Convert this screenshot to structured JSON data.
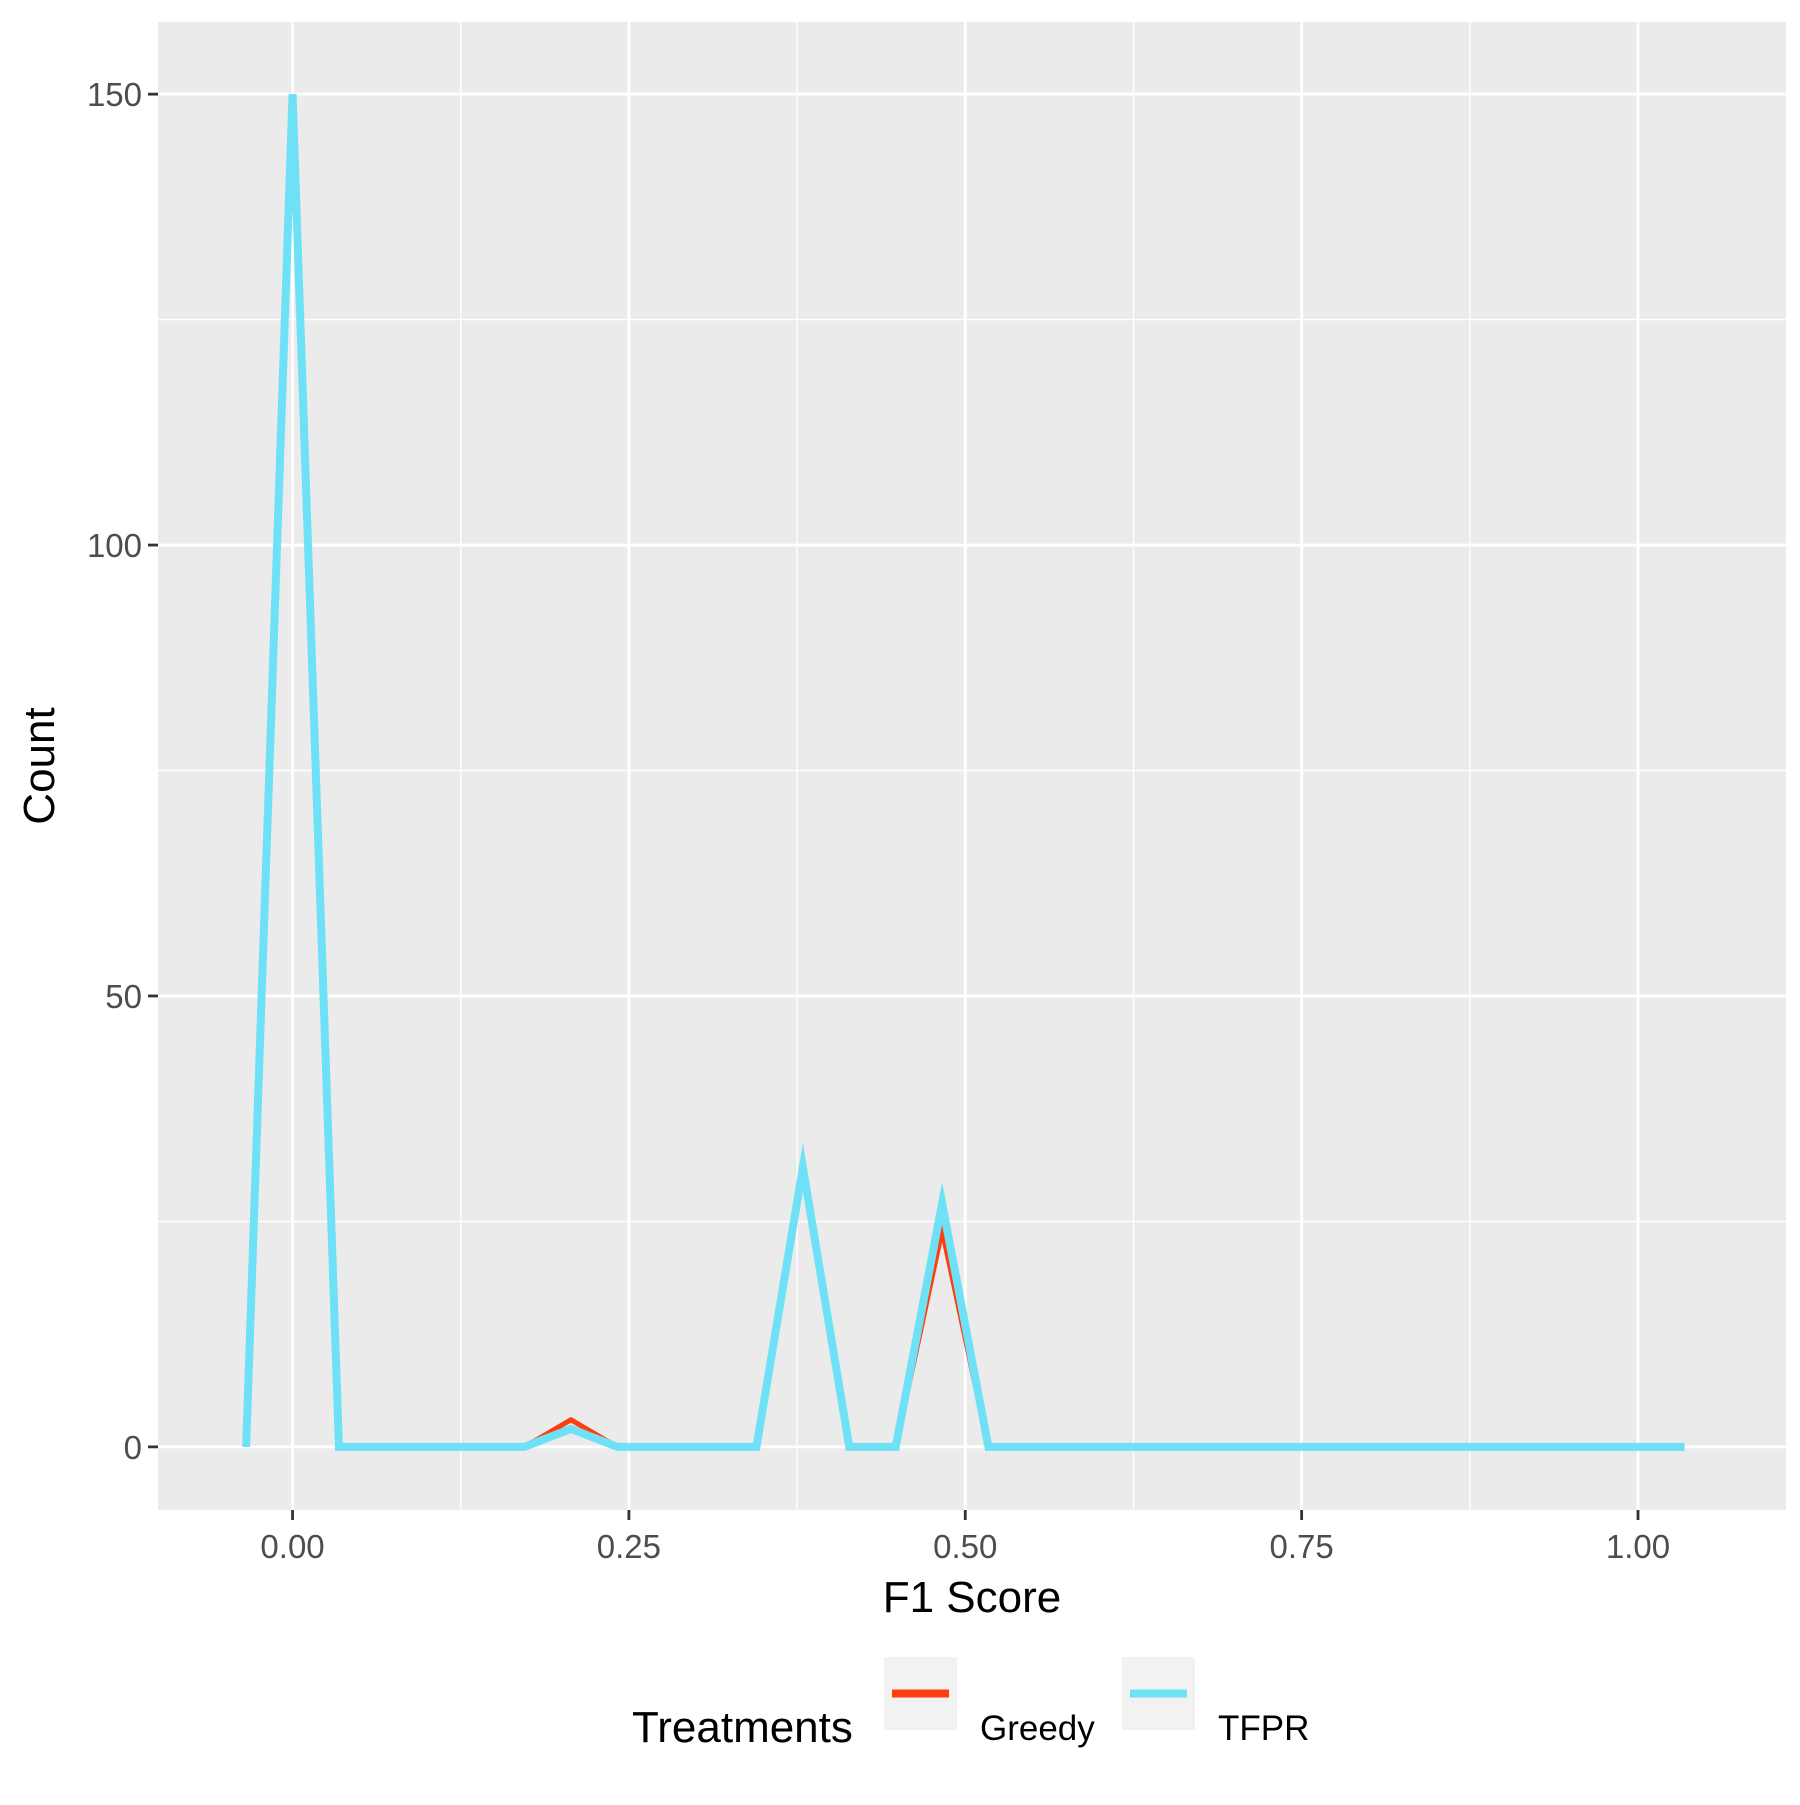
{
  "chart_data": {
    "type": "line",
    "title": "",
    "xlabel": "F1 Score",
    "ylabel": "Count",
    "xlim": [
      -0.1,
      1.11
    ],
    "ylim": [
      -7,
      158
    ],
    "x_ticks": [
      0.0,
      0.25,
      0.5,
      0.75,
      1.0
    ],
    "x_tick_labels": [
      "0.00",
      "0.25",
      "0.50",
      "0.75",
      "1.00"
    ],
    "y_ticks": [
      0,
      50,
      100,
      150
    ],
    "y_tick_labels": [
      "0",
      "50",
      "100",
      "150"
    ],
    "x_minor_ticks": [
      0.125,
      0.375,
      0.625,
      0.875
    ],
    "y_minor_ticks": [
      25,
      75,
      125
    ],
    "grid": true,
    "panel_background": "#ebebeb",
    "grid_color": "#ffffff",
    "legend": {
      "title": "Treatments",
      "position": "bottom",
      "key_background": "#f2f2f2"
    },
    "x": [
      -0.0345,
      0.0,
      0.0345,
      0.069,
      0.1034,
      0.1379,
      0.1724,
      0.2069,
      0.2414,
      0.2759,
      0.3103,
      0.3448,
      0.3793,
      0.4138,
      0.4483,
      0.4828,
      0.5172,
      0.5517,
      0.5862,
      0.6207,
      0.6552,
      0.6897,
      0.7241,
      0.7586,
      0.7931,
      0.8276,
      0.8621,
      0.8966,
      0.931,
      0.9655,
      1.0,
      1.0345
    ],
    "series": [
      {
        "name": "Greedy",
        "color": "#ff3d0d",
        "values": [
          0,
          150,
          0,
          0,
          0,
          0,
          0,
          3,
          0,
          0,
          0,
          0,
          31,
          0,
          0,
          24,
          0,
          0,
          0,
          0,
          0,
          0,
          0,
          0,
          0,
          0,
          0,
          0,
          0,
          0,
          0,
          0
        ]
      },
      {
        "name": "TFPR",
        "color": "#6fe1f7",
        "values": [
          0,
          150,
          0,
          0,
          0,
          0,
          0,
          2,
          0,
          0,
          0,
          0,
          31,
          0,
          0,
          27,
          0,
          0,
          0,
          0,
          0,
          0,
          0,
          0,
          0,
          0,
          0,
          0,
          0,
          0,
          0,
          0
        ]
      }
    ]
  }
}
